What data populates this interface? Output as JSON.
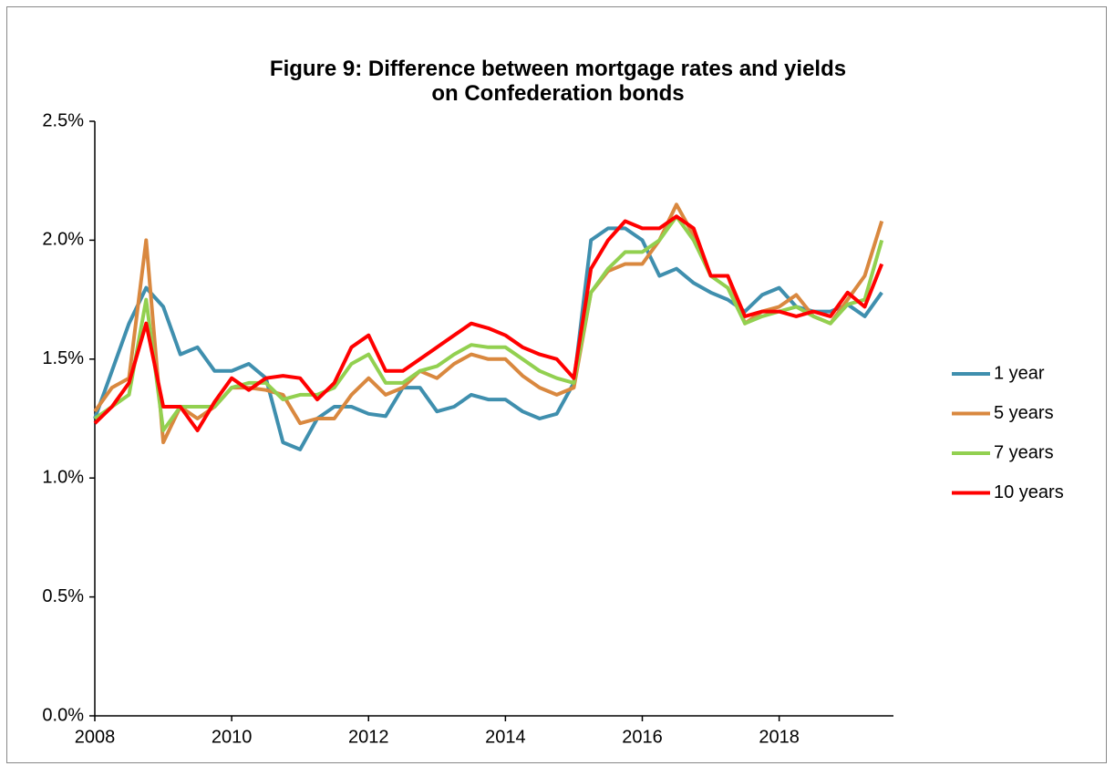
{
  "chart_data": {
    "type": "line",
    "title": "Figure 9: Difference between mortgage rates and yields on Confederation bonds",
    "x": [
      2008.0,
      2008.25,
      2008.5,
      2008.75,
      2009.0,
      2009.25,
      2009.5,
      2009.75,
      2010.0,
      2010.25,
      2010.5,
      2010.75,
      2011.0,
      2011.25,
      2011.5,
      2011.75,
      2012.0,
      2012.25,
      2012.5,
      2012.75,
      2013.0,
      2013.25,
      2013.5,
      2013.75,
      2014.0,
      2014.25,
      2014.5,
      2014.75,
      2015.0,
      2015.25,
      2015.5,
      2015.75,
      2016.0,
      2016.25,
      2016.5,
      2016.75,
      2017.0,
      2017.25,
      2017.5,
      2017.75,
      2018.0,
      2018.25,
      2018.5,
      2018.75,
      2019.0,
      2019.25,
      2019.5
    ],
    "series": [
      {
        "name": "1 year",
        "color": "#3f8fae",
        "values": [
          1.25,
          1.45,
          1.65,
          1.8,
          1.72,
          1.52,
          1.55,
          1.45,
          1.45,
          1.48,
          1.42,
          1.15,
          1.12,
          1.25,
          1.3,
          1.3,
          1.27,
          1.26,
          1.38,
          1.38,
          1.28,
          1.3,
          1.35,
          1.33,
          1.33,
          1.28,
          1.25,
          1.27,
          1.4,
          2.0,
          2.05,
          2.05,
          2.0,
          1.85,
          1.88,
          1.82,
          1.78,
          1.75,
          1.7,
          1.77,
          1.8,
          1.72,
          1.7,
          1.7,
          1.73,
          1.68,
          1.78
        ]
      },
      {
        "name": "5 years",
        "color": "#d9883f",
        "values": [
          1.28,
          1.38,
          1.42,
          2.0,
          1.15,
          1.3,
          1.25,
          1.3,
          1.38,
          1.38,
          1.37,
          1.35,
          1.23,
          1.25,
          1.25,
          1.35,
          1.42,
          1.35,
          1.38,
          1.45,
          1.42,
          1.48,
          1.52,
          1.5,
          1.5,
          1.43,
          1.38,
          1.35,
          1.38,
          1.78,
          1.87,
          1.9,
          1.9,
          2.0,
          2.15,
          2.02,
          1.85,
          1.85,
          1.65,
          1.7,
          1.72,
          1.77,
          1.68,
          1.65,
          1.75,
          1.85,
          2.08
        ]
      },
      {
        "name": "7 years",
        "color": "#92d050",
        "values": [
          1.25,
          1.3,
          1.35,
          1.75,
          1.2,
          1.3,
          1.3,
          1.3,
          1.38,
          1.4,
          1.4,
          1.33,
          1.35,
          1.35,
          1.38,
          1.48,
          1.52,
          1.4,
          1.4,
          1.45,
          1.47,
          1.52,
          1.56,
          1.55,
          1.55,
          1.5,
          1.45,
          1.42,
          1.4,
          1.78,
          1.88,
          1.95,
          1.95,
          2.0,
          2.1,
          2.0,
          1.85,
          1.8,
          1.65,
          1.68,
          1.7,
          1.72,
          1.68,
          1.65,
          1.73,
          1.75,
          2.0
        ]
      },
      {
        "name": "10 years",
        "color": "#ff0000",
        "values": [
          1.23,
          1.3,
          1.4,
          1.65,
          1.3,
          1.3,
          1.2,
          1.32,
          1.42,
          1.37,
          1.42,
          1.43,
          1.42,
          1.33,
          1.4,
          1.55,
          1.6,
          1.45,
          1.45,
          1.5,
          1.55,
          1.6,
          1.65,
          1.63,
          1.6,
          1.55,
          1.52,
          1.5,
          1.42,
          1.88,
          2.0,
          2.08,
          2.05,
          2.05,
          2.1,
          2.05,
          1.85,
          1.85,
          1.68,
          1.7,
          1.7,
          1.68,
          1.7,
          1.68,
          1.78,
          1.72,
          1.9
        ]
      }
    ],
    "xlim": [
      2008,
      2019.67
    ],
    "xticks": [
      2008,
      2010,
      2012,
      2014,
      2016,
      2018
    ],
    "ylim": [
      0,
      2.5
    ],
    "yticks": [
      {
        "value": 0,
        "label": "0.0%"
      },
      {
        "value": 0.5,
        "label": "0.5%"
      },
      {
        "value": 1,
        "label": "1.0%"
      },
      {
        "value": 1.5,
        "label": "1.5%"
      },
      {
        "value": 2,
        "label": "2.0%"
      },
      {
        "value": 2.5,
        "label": "2.5%"
      }
    ],
    "grid": false,
    "legend": "right"
  }
}
